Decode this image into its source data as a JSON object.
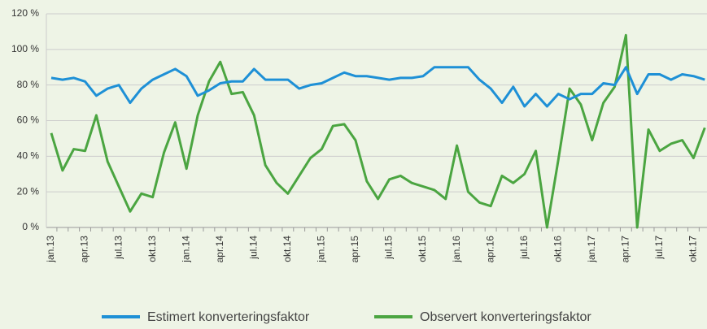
{
  "chart_data": {
    "type": "line",
    "categories": [
      "jan.13",
      null,
      null,
      "apr.13",
      null,
      null,
      "jul.13",
      null,
      null,
      "okt.13",
      null,
      null,
      "jan.14",
      null,
      null,
      "apr.14",
      null,
      null,
      "jul.14",
      null,
      null,
      "okt.14",
      null,
      null,
      "jan.15",
      null,
      null,
      "apr.15",
      null,
      null,
      "jul.15",
      null,
      null,
      "okt.15",
      null,
      null,
      "jan.16",
      null,
      null,
      "apr.16",
      null,
      null,
      "jul.16",
      null,
      null,
      "okt.16",
      null,
      null,
      "jan.17",
      null,
      null,
      "apr.17",
      null,
      null,
      "jul.17",
      null,
      null,
      "okt.17",
      null
    ],
    "series": [
      {
        "name": "Estimert konverteringsfaktor",
        "color": "#1e90d6",
        "values": [
          84,
          83,
          84,
          82,
          74,
          78,
          80,
          70,
          78,
          83,
          86,
          89,
          85,
          74,
          77,
          81,
          82,
          82,
          89,
          83,
          83,
          83,
          78,
          80,
          81,
          84,
          87,
          85,
          85,
          84,
          83,
          84,
          84,
          85,
          90,
          90,
          90,
          90,
          83,
          78,
          70,
          79,
          68,
          75,
          68,
          75,
          72,
          75,
          75,
          81,
          80,
          90,
          75,
          86,
          86,
          83,
          86,
          85,
          83
        ]
      },
      {
        "name": "Observert konverteringsfaktor",
        "color": "#4ba541",
        "values": [
          53,
          32,
          44,
          43,
          63,
          37,
          23,
          9,
          19,
          17,
          42,
          59,
          33,
          63,
          82,
          93,
          75,
          76,
          63,
          35,
          25,
          19,
          29,
          39,
          44,
          57,
          58,
          49,
          26,
          16,
          27,
          29,
          25,
          23,
          21,
          16,
          46,
          20,
          14,
          12,
          29,
          25,
          30,
          43,
          0,
          38,
          78,
          69,
          49,
          70,
          79,
          108,
          0,
          55,
          43,
          47,
          49,
          39,
          56
        ]
      }
    ],
    "ylim": [
      0,
      120
    ],
    "yticks": [
      {
        "value": 0,
        "label": "0 %"
      },
      {
        "value": 20,
        "label": "20 %"
      },
      {
        "value": 40,
        "label": "40 %"
      },
      {
        "value": 60,
        "label": "60 %"
      },
      {
        "value": 80,
        "label": "80 %"
      },
      {
        "value": 100,
        "label": "100 %"
      },
      {
        "value": 120,
        "label": "120 %"
      }
    ],
    "grid": true,
    "legend": "bottom"
  }
}
